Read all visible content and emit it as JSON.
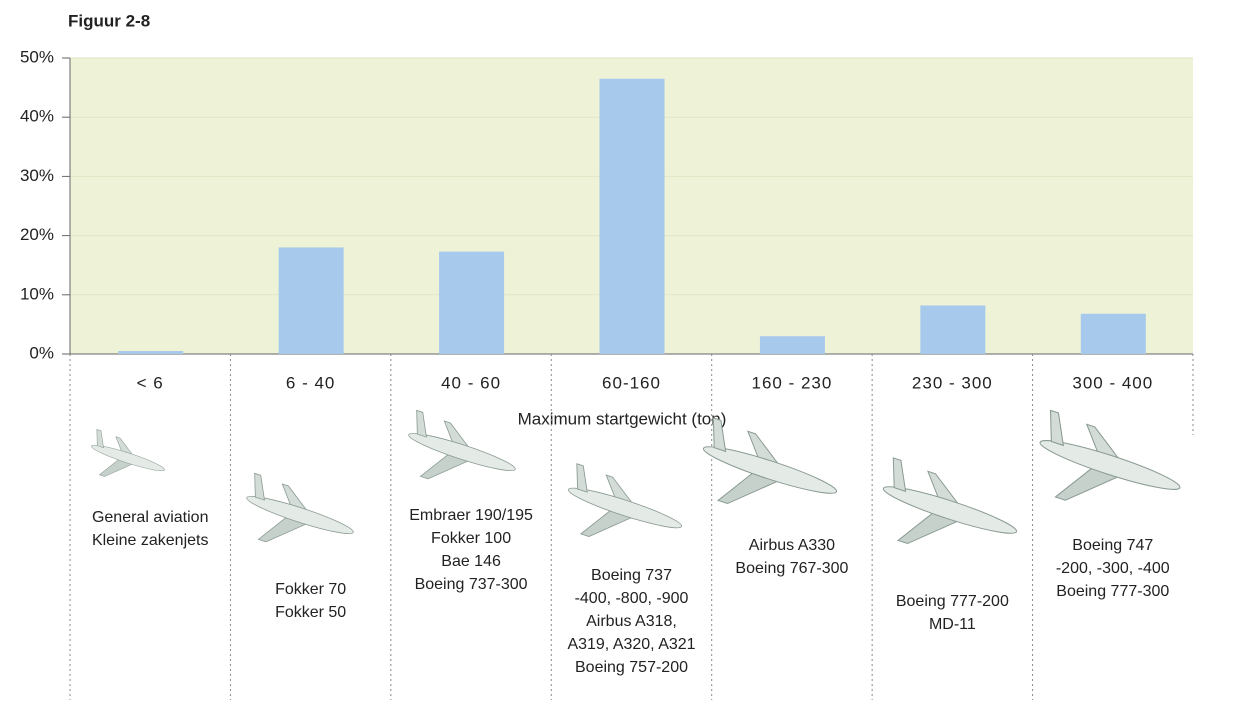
{
  "chart_data": {
    "type": "bar",
    "title": "Figuur 2-8",
    "categories": [
      "< 6",
      "6 - 40",
      "40 - 60",
      "60-160",
      "160 - 230",
      "230 - 300",
      "300 - 400"
    ],
    "values": [
      0.5,
      18,
      17.3,
      46.5,
      3,
      8.2,
      6.8
    ],
    "color": "#a7c9ec",
    "ylim": [
      0,
      50
    ],
    "yticks": [
      {
        "value": 0,
        "label": "0%"
      },
      {
        "value": 10,
        "label": "10%"
      },
      {
        "value": 20,
        "label": "20%"
      },
      {
        "value": 30,
        "label": "30%"
      },
      {
        "value": 40,
        "label": "40%"
      },
      {
        "value": 50,
        "label": "50%"
      }
    ],
    "grid": true,
    "xlabel": "Maximum startgewicht (ton)",
    "aircraft": [
      [
        "General aviation",
        "Kleine zakenjets"
      ],
      [
        "Fokker 70",
        "Fokker 50"
      ],
      [
        "Embraer 190/195",
        "Fokker 100",
        "Bae 146",
        "Boeing 737-300"
      ],
      [
        "Boeing 737",
        "-400, -800, -900",
        "Airbus A318,",
        "A319, A320, A321",
        "Boeing 757-200"
      ],
      [
        "Airbus A330",
        "Boeing 767-300"
      ],
      [
        "Boeing 777-200",
        "MD-11"
      ],
      [
        "Boeing 747",
        "-200, -300, -400",
        "Boeing 777-300"
      ]
    ]
  }
}
